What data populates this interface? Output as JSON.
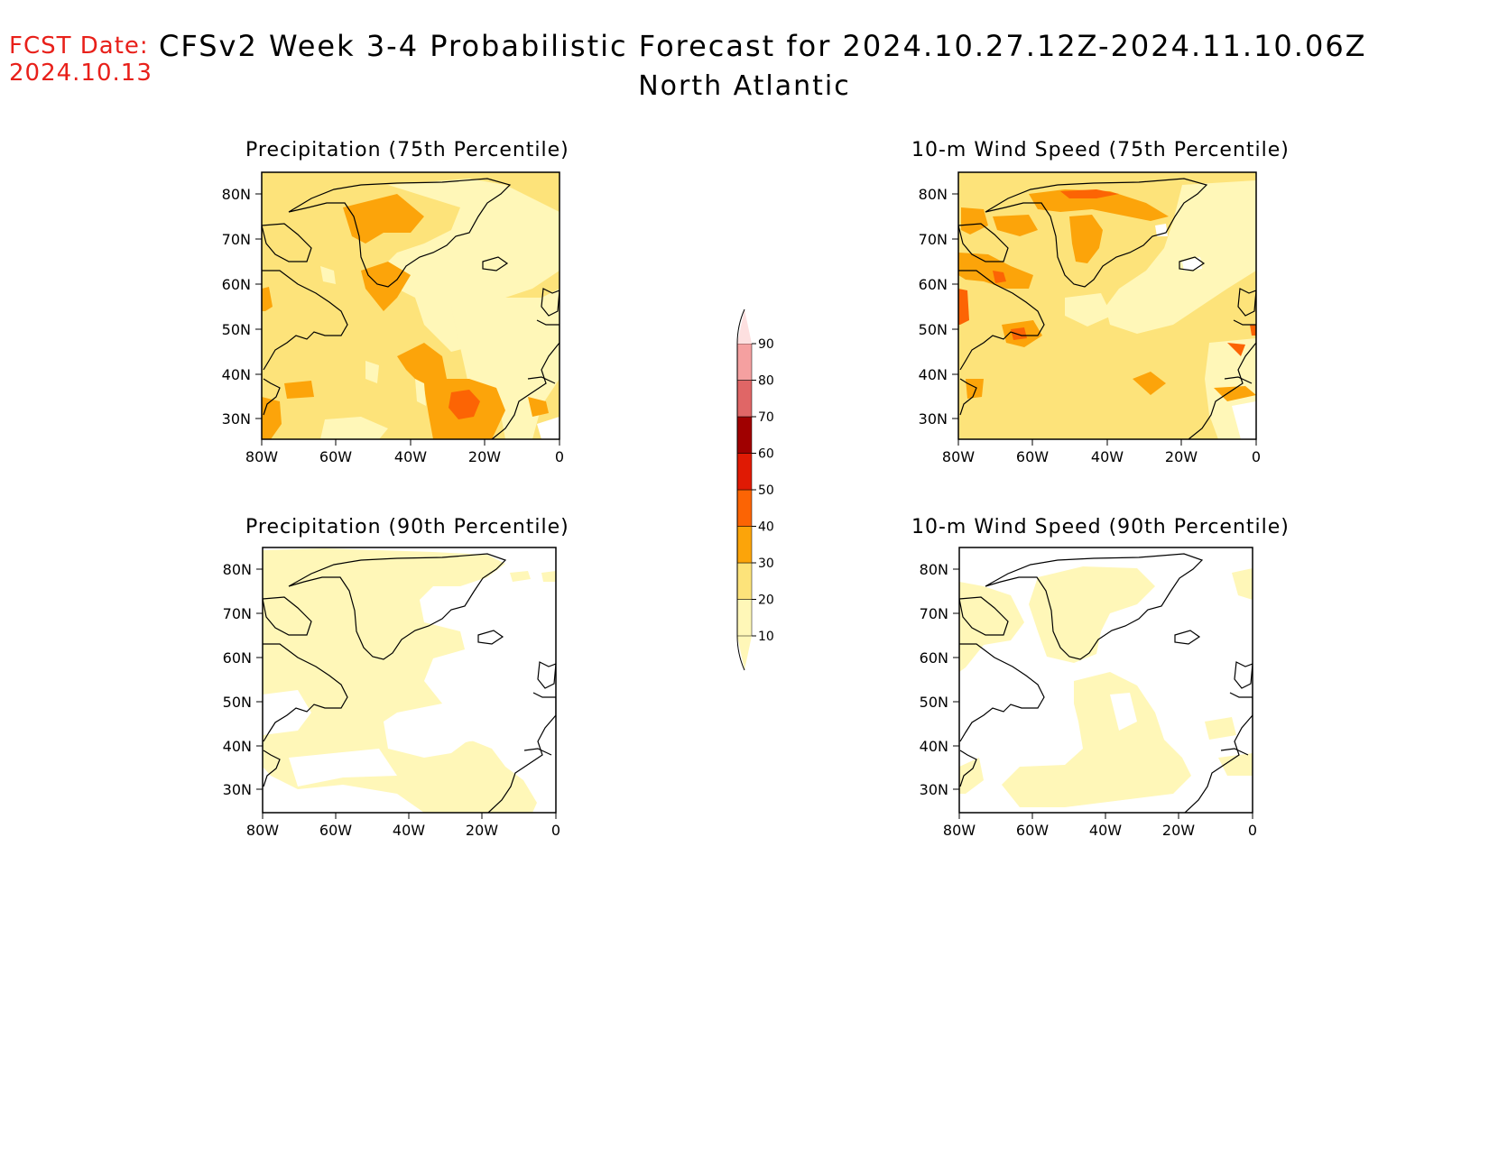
{
  "header": {
    "fcst_label": "FCST Date:",
    "fcst_date": "2024.10.13",
    "title": "CFSv2 Week 3-4 Probabilistic Forecast for 2024.10.27.12Z-2024.11.10.06Z",
    "region": "North Atlantic"
  },
  "colorbar": {
    "levels": [
      "10",
      "20",
      "30",
      "40",
      "50",
      "60",
      "70",
      "80",
      "90"
    ],
    "colors": [
      "#fff7b8",
      "#fde37a",
      "#fca40a",
      "#fc6404",
      "#e01a04",
      "#a00000",
      "#e06666",
      "#f5a0a0",
      "#fde0e0"
    ]
  },
  "panels": [
    {
      "title": "Precipitation (75th Percentile)",
      "lat_labels": [
        "80N",
        "70N",
        "60N",
        "50N",
        "40N",
        "30N"
      ],
      "lon_labels": [
        "80W",
        "60W",
        "40W",
        "20W",
        "0"
      ]
    },
    {
      "title": "10-m Wind Speed (75th Percentile)",
      "lat_labels": [
        "80N",
        "70N",
        "60N",
        "50N",
        "40N",
        "30N"
      ],
      "lon_labels": [
        "80W",
        "60W",
        "40W",
        "20W",
        "0"
      ]
    },
    {
      "title": "Precipitation (90th Percentile)",
      "lat_labels": [
        "80N",
        "70N",
        "60N",
        "50N",
        "40N",
        "30N"
      ],
      "lon_labels": [
        "80W",
        "60W",
        "40W",
        "20W",
        "0"
      ]
    },
    {
      "title": "10-m Wind Speed (90th Percentile)",
      "lat_labels": [
        "80N",
        "70N",
        "60N",
        "50N",
        "40N",
        "30N"
      ],
      "lon_labels": [
        "80W",
        "60W",
        "40W",
        "20W",
        "0"
      ]
    }
  ]
}
